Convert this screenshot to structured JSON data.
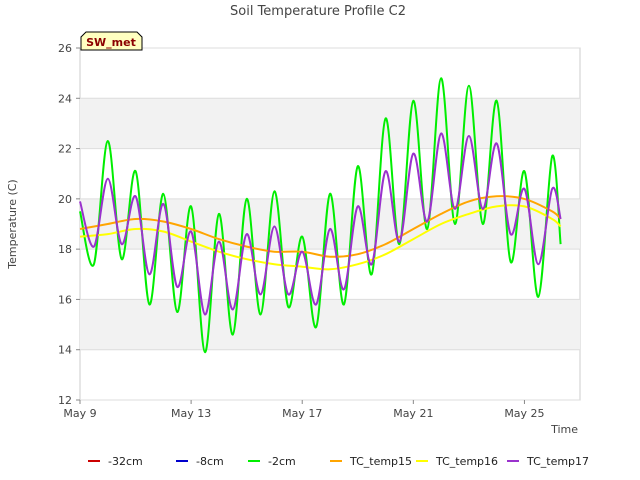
{
  "chart_data": {
    "type": "line",
    "title": "Soil Temperature Profile C2",
    "xlabel": "Time",
    "ylabel": "Temperature (C)",
    "badge": "SW_met",
    "x_ticks": [
      "May 9",
      "May 13",
      "May 17",
      "May 21",
      "May 25"
    ],
    "y_ticks": [
      "12",
      "14",
      "16",
      "18",
      "20",
      "22",
      "24",
      "26"
    ],
    "ylim": [
      12,
      26
    ],
    "xlim_days": [
      9,
      27
    ],
    "grid": "horizontal bands",
    "legend_position": "bottom",
    "series": [
      {
        "name": "-32cm",
        "color": "#cc0000",
        "x": [],
        "y": []
      },
      {
        "name": "-8cm",
        "color": "#0000cc",
        "x": [],
        "y": []
      },
      {
        "name": "-2cm",
        "color": "#00ee00",
        "x": [
          "May 9",
          "May 9.5",
          "May 10",
          "May 10.5",
          "May 11",
          "May 11.5",
          "May 12",
          "May 12.5",
          "May 13",
          "May 13.5",
          "May 14",
          "May 14.5",
          "May 15",
          "May 15.5",
          "May 16",
          "May 16.5",
          "May 17",
          "May 17.5",
          "May 18",
          "May 18.5",
          "May 19",
          "May 19.5",
          "May 20",
          "May 20.5",
          "May 21",
          "May 21.5",
          "May 22",
          "May 22.5",
          "May 23",
          "May 23.5",
          "May 24",
          "May 24.5",
          "May 25",
          "May 25.5",
          "May 26",
          "May 26.3"
        ],
        "y": [
          19.5,
          17.4,
          22.3,
          17.6,
          21.1,
          15.8,
          20.2,
          15.5,
          19.7,
          13.9,
          19.4,
          14.6,
          20.0,
          15.4,
          20.3,
          15.7,
          18.5,
          14.9,
          20.2,
          15.8,
          21.3,
          17.0,
          23.2,
          18.2,
          23.9,
          18.8,
          24.8,
          19.0,
          24.5,
          19.0,
          23.9,
          17.5,
          21.1,
          16.1,
          21.7,
          18.2
        ]
      },
      {
        "name": "TC_temp15",
        "color": "#ffa500",
        "x": [
          "May 9",
          "May 10",
          "May 11",
          "May 12",
          "May 13",
          "May 14",
          "May 15",
          "May 16",
          "May 17",
          "May 18",
          "May 19",
          "May 20",
          "May 21",
          "May 22",
          "May 23",
          "May 24",
          "May 25",
          "May 26",
          "May 26.3"
        ],
        "y": [
          18.8,
          19.0,
          19.2,
          19.1,
          18.8,
          18.4,
          18.1,
          17.9,
          17.9,
          17.7,
          17.8,
          18.2,
          18.8,
          19.4,
          19.9,
          20.1,
          20.0,
          19.5,
          19.2
        ]
      },
      {
        "name": "TC_temp16",
        "color": "#ffff00",
        "x": [
          "May 9",
          "May 10",
          "May 11",
          "May 12",
          "May 13",
          "May 14",
          "May 15",
          "May 16",
          "May 17",
          "May 18",
          "May 19",
          "May 20",
          "May 21",
          "May 22",
          "May 23",
          "May 24",
          "May 25",
          "May 26",
          "May 26.3"
        ],
        "y": [
          18.5,
          18.6,
          18.8,
          18.7,
          18.3,
          17.9,
          17.6,
          17.4,
          17.3,
          17.2,
          17.4,
          17.8,
          18.4,
          19.0,
          19.4,
          19.7,
          19.7,
          19.2,
          18.9
        ]
      },
      {
        "name": "TC_temp17",
        "color": "#9a32cd",
        "x": [
          "May 9",
          "May 9.5",
          "May 10",
          "May 10.5",
          "May 11",
          "May 11.5",
          "May 12",
          "May 12.5",
          "May 13",
          "May 13.5",
          "May 14",
          "May 14.5",
          "May 15",
          "May 15.5",
          "May 16",
          "May 16.5",
          "May 17",
          "May 17.5",
          "May 18",
          "May 18.5",
          "May 19",
          "May 19.5",
          "May 20",
          "May 20.5",
          "May 21",
          "May 21.5",
          "May 22",
          "May 22.5",
          "May 23",
          "May 23.5",
          "May 24",
          "May 24.5",
          "May 25",
          "May 25.5",
          "May 26",
          "May 26.3"
        ],
        "y": [
          19.9,
          18.1,
          20.8,
          18.2,
          20.1,
          17.0,
          19.8,
          16.5,
          18.7,
          15.4,
          18.3,
          15.6,
          18.6,
          16.2,
          18.9,
          16.2,
          17.9,
          15.8,
          18.8,
          16.4,
          19.7,
          17.4,
          21.1,
          18.3,
          21.8,
          19.1,
          22.6,
          19.6,
          22.5,
          19.6,
          22.2,
          18.6,
          20.4,
          17.4,
          20.4,
          19.2
        ]
      }
    ]
  }
}
